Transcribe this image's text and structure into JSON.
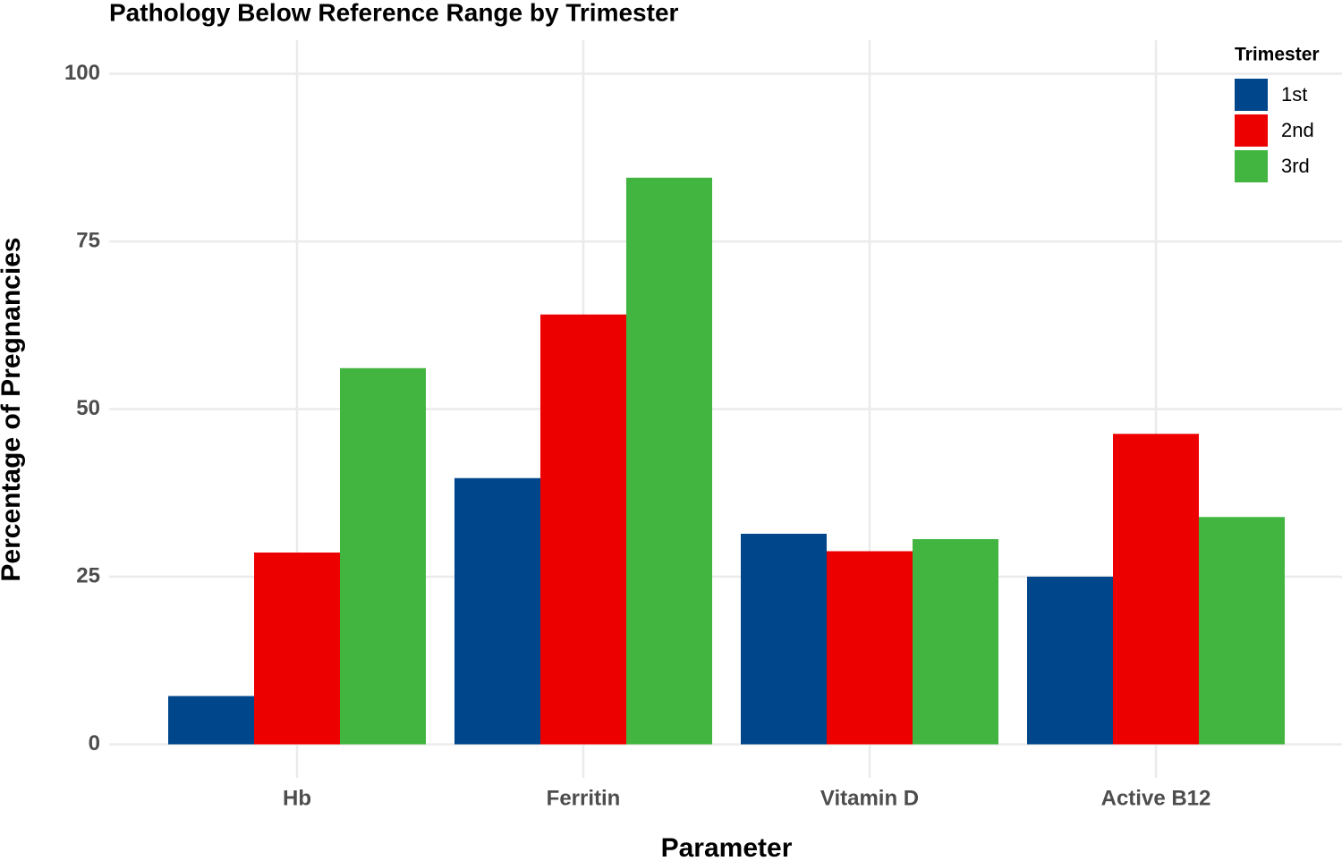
{
  "chart_data": {
    "type": "bar",
    "title": "Pathology Below Reference Range by Trimester",
    "x_label": "Parameter",
    "y_label": "Percentage of Pregnancies",
    "legend_title": "Trimester",
    "legend_position": "top-right",
    "grid": true,
    "categories": [
      "Hb",
      "Ferritin",
      "Vitamin D",
      "Active B12"
    ],
    "series": [
      {
        "name": "1st",
        "color": "#00468b",
        "values": [
          7.2,
          39.7,
          31.4,
          25.0
        ]
      },
      {
        "name": "2nd",
        "color": "#ed0000",
        "values": [
          28.6,
          64.1,
          28.8,
          46.3
        ]
      },
      {
        "name": "3rd",
        "color": "#42b540",
        "values": [
          56.1,
          84.5,
          30.6,
          33.9
        ]
      }
    ],
    "ylim": [
      -5,
      105
    ],
    "yticks": [
      0,
      25,
      50,
      75,
      100
    ]
  }
}
